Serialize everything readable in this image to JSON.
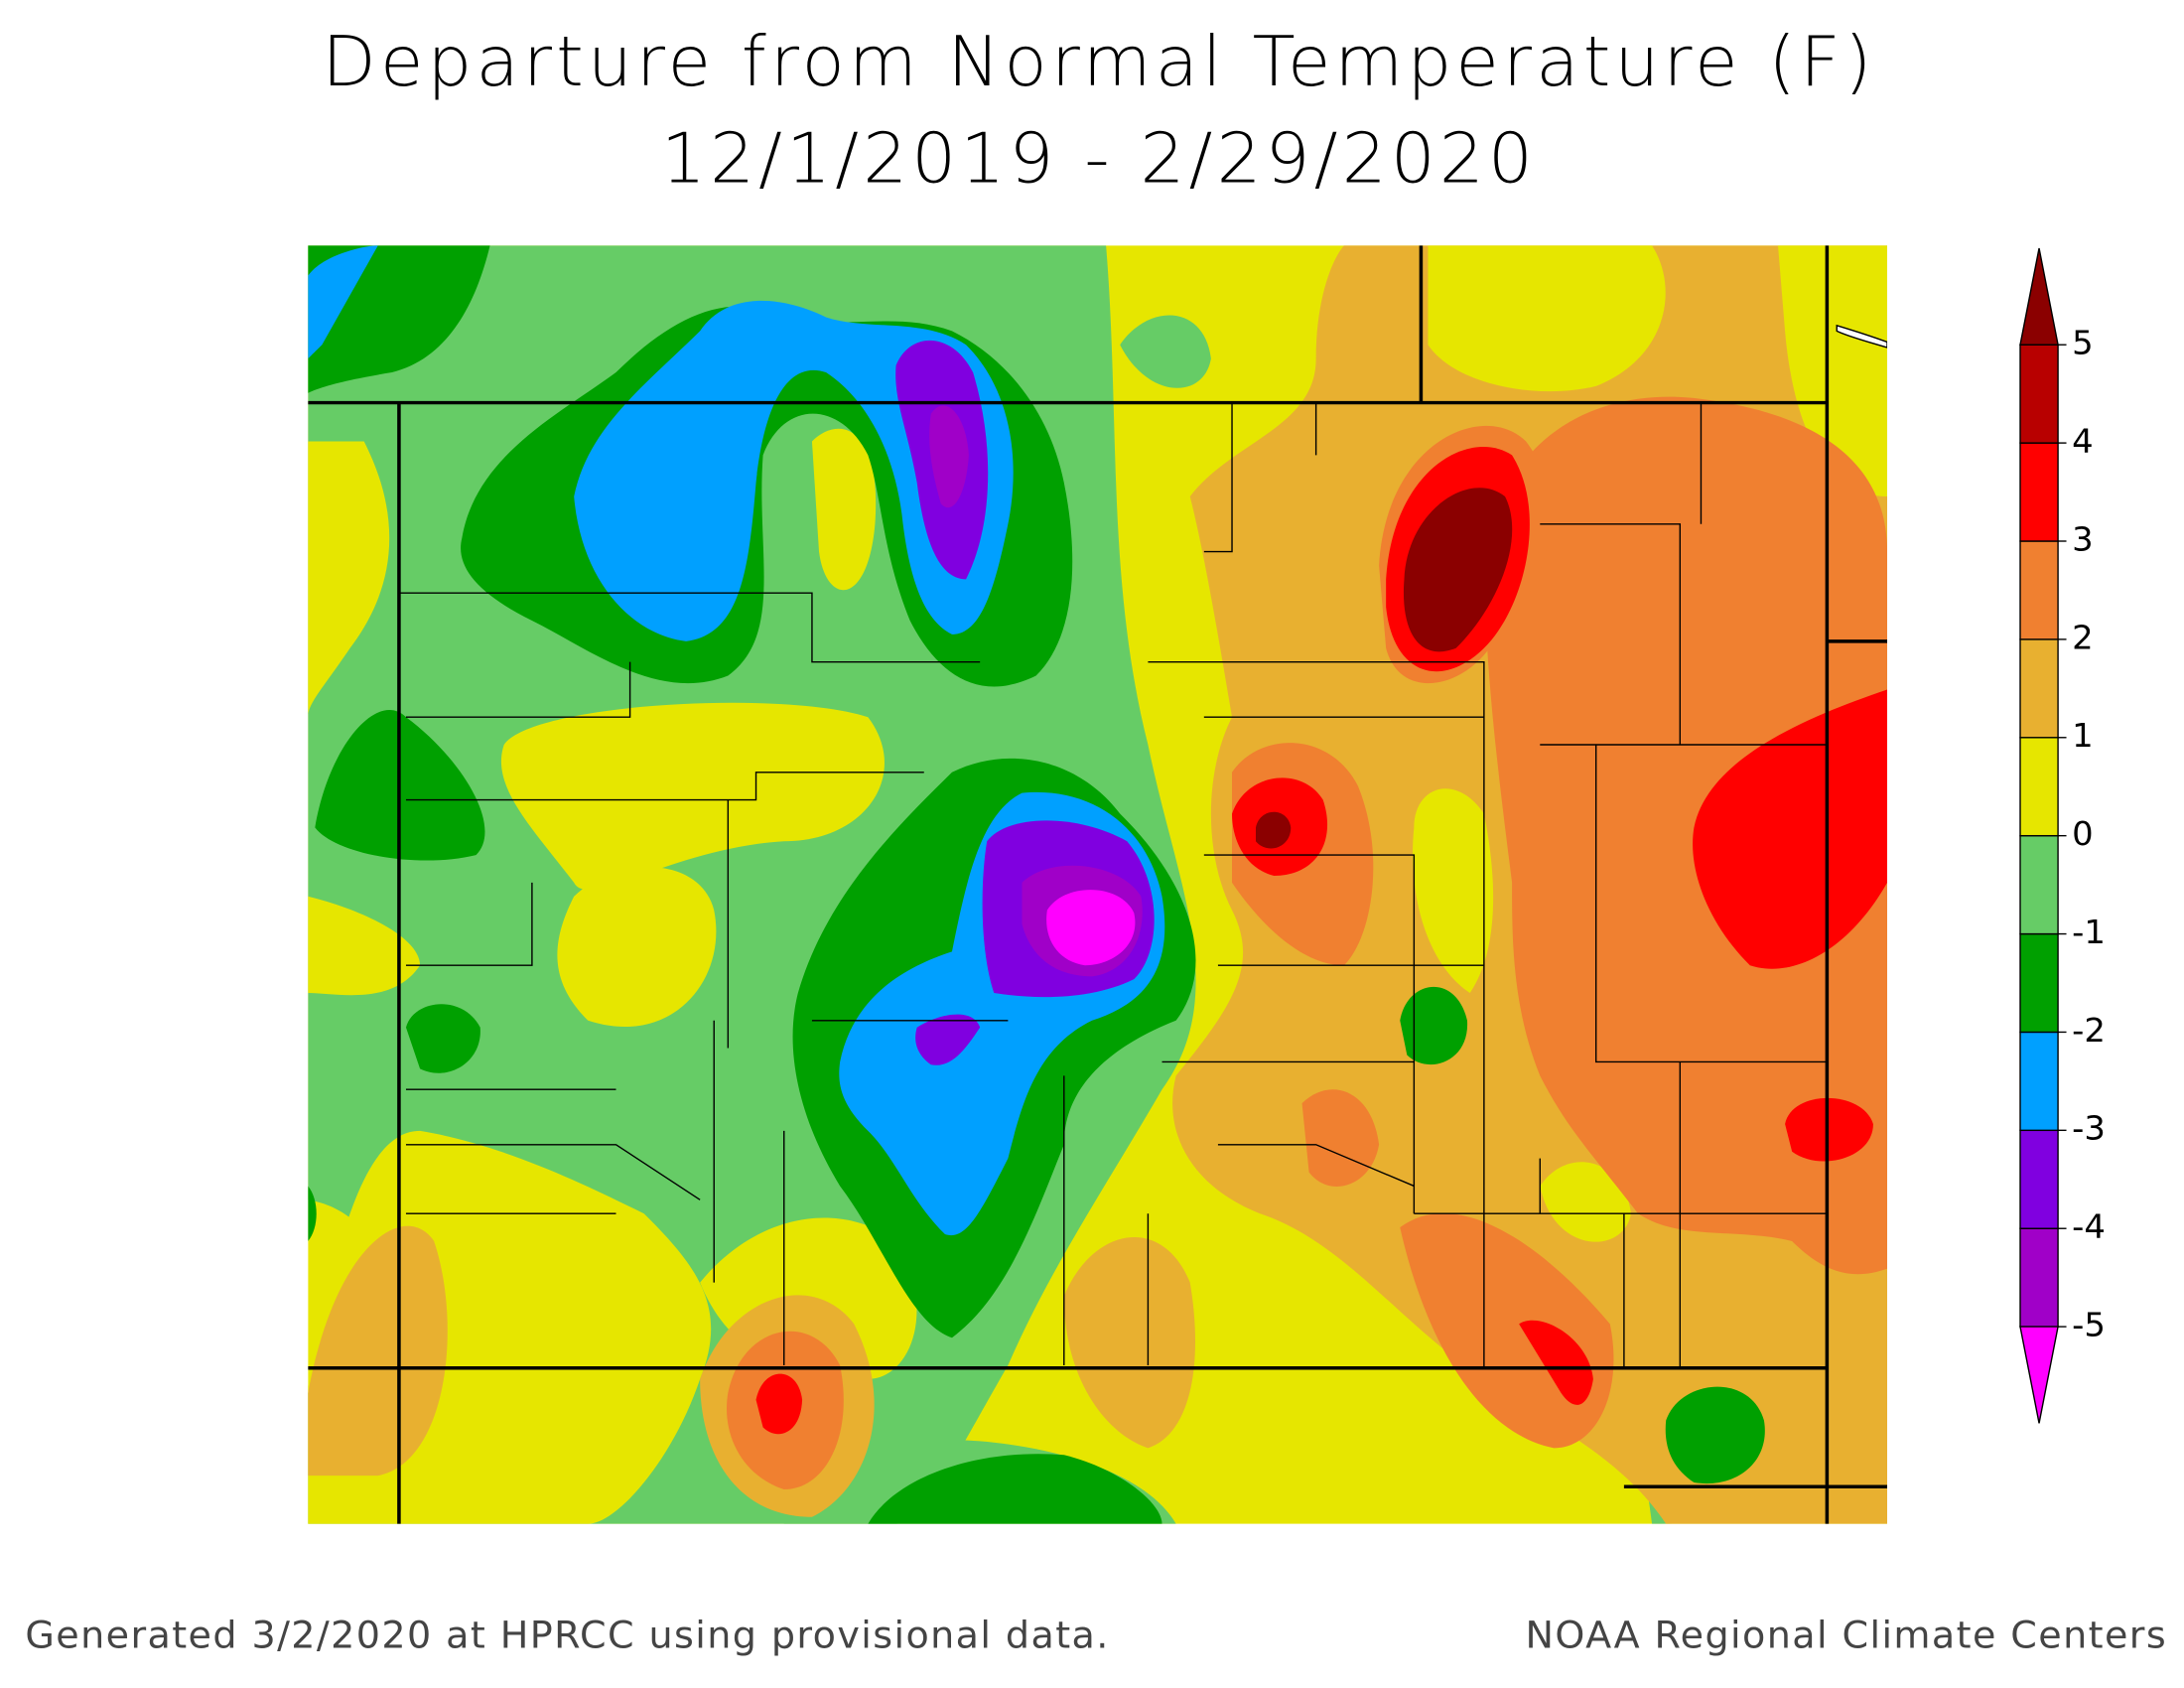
{
  "header": {
    "title": "Departure from Normal Temperature (F)",
    "subtitle": "12/1/2019 - 2/29/2020"
  },
  "legend": {
    "lim": [
      -5,
      5
    ],
    "ticks": [
      -5,
      -4,
      -3,
      -2,
      -1,
      0,
      1,
      2,
      3,
      4,
      5
    ],
    "colors": [
      "#ff00ff",
      "#a000c8",
      "#8000e0",
      "#00a0ff",
      "#00a000",
      "#66cc66",
      "#e6e600",
      "#e8b030",
      "#f08030",
      "#ff0000",
      "#b80000",
      "#8b0000"
    ]
  },
  "footer": {
    "left": "Generated 3/2/2020 at HPRCC using provisional data.",
    "right": "NOAA Regional Climate Centers"
  }
}
